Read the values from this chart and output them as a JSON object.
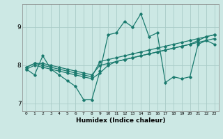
{
  "title": "",
  "xlabel": "Humidex (Indice chaleur)",
  "ylabel": "",
  "xlim": [
    -0.5,
    23.5
  ],
  "ylim": [
    6.8,
    9.6
  ],
  "xticks": [
    0,
    1,
    2,
    3,
    4,
    5,
    6,
    7,
    8,
    9,
    10,
    11,
    12,
    13,
    14,
    15,
    16,
    17,
    18,
    19,
    20,
    21,
    22,
    23
  ],
  "yticks": [
    7,
    8,
    9
  ],
  "bg_color": "#cce8e4",
  "grid_color": "#aaccc8",
  "line_color": "#1a7a6e",
  "line_width": 0.9,
  "marker": "D",
  "marker_size": 1.8,
  "lines": [
    [
      7.9,
      7.75,
      8.25,
      7.9,
      7.75,
      7.6,
      7.45,
      7.1,
      7.1,
      7.85,
      8.8,
      8.85,
      9.15,
      9.0,
      9.35,
      8.75,
      8.85,
      7.55,
      7.7,
      7.65,
      7.7,
      8.55,
      8.65,
      8.55
    ],
    [
      7.9,
      8.0,
      7.95,
      7.9,
      7.85,
      7.8,
      7.75,
      7.7,
      7.65,
      7.8,
      8.0,
      8.1,
      8.15,
      8.2,
      8.25,
      8.3,
      8.35,
      8.4,
      8.45,
      8.5,
      8.55,
      8.65,
      8.75,
      8.8
    ],
    [
      7.95,
      8.05,
      8.0,
      7.95,
      7.9,
      7.85,
      7.8,
      7.75,
      7.7,
      8.1,
      8.15,
      8.2,
      8.25,
      8.3,
      8.35,
      8.4,
      8.45,
      8.5,
      8.55,
      8.6,
      8.65,
      8.7,
      8.75,
      8.8
    ],
    [
      7.95,
      8.05,
      8.05,
      8.0,
      7.95,
      7.9,
      7.85,
      7.8,
      7.75,
      8.0,
      8.05,
      8.1,
      8.15,
      8.2,
      8.25,
      8.3,
      8.35,
      8.4,
      8.45,
      8.5,
      8.55,
      8.6,
      8.65,
      8.7
    ]
  ]
}
